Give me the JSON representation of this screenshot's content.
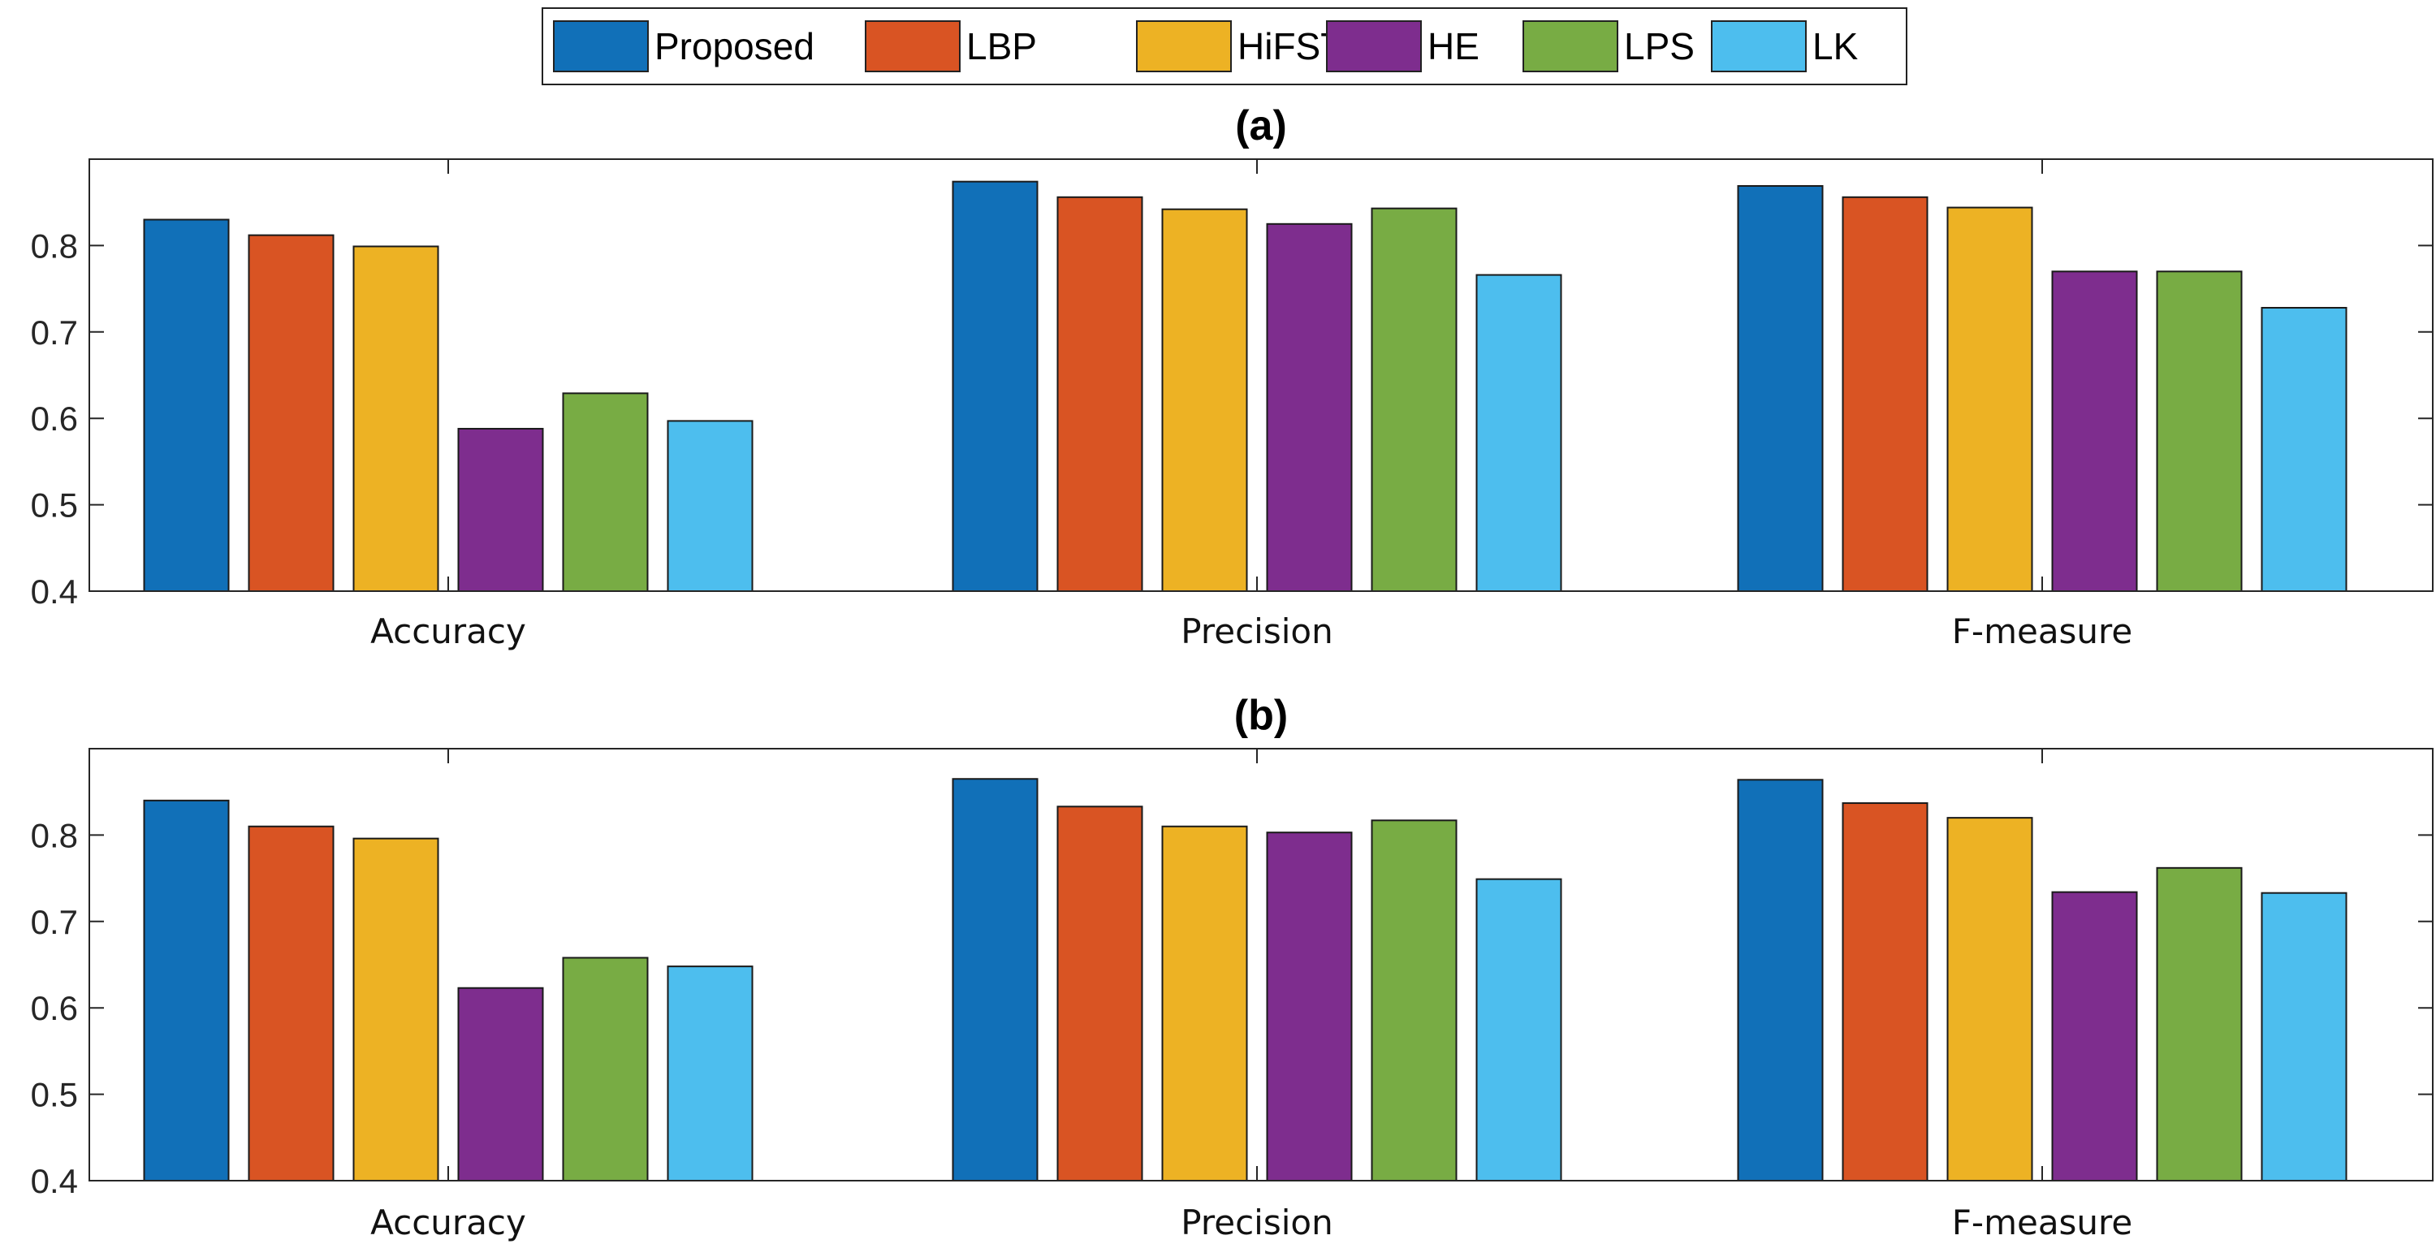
{
  "chart_data": [
    {
      "type": "bar",
      "title": "(a)",
      "categories": [
        "Accuracy",
        "Precision",
        "F-measure"
      ],
      "series": [
        {
          "name": "Proposed",
          "color": "#1170B8",
          "values": [
            0.83,
            0.874,
            0.869
          ]
        },
        {
          "name": "LBP",
          "color": "#D95423",
          "values": [
            0.812,
            0.856,
            0.856
          ]
        },
        {
          "name": "HiFST",
          "color": "#EDB224",
          "values": [
            0.799,
            0.842,
            0.844
          ]
        },
        {
          "name": "HE",
          "color": "#7E2D8E",
          "values": [
            0.588,
            0.825,
            0.77
          ]
        },
        {
          "name": "LPS",
          "color": "#78AC44",
          "values": [
            0.629,
            0.843,
            0.77
          ]
        },
        {
          "name": "LK",
          "color": "#4DBEEE",
          "values": [
            0.597,
            0.766,
            0.728
          ]
        }
      ],
      "ylim": [
        0.4,
        0.9
      ],
      "yticks": [
        "0.4",
        "0.5",
        "0.6",
        "0.7",
        "0.8"
      ],
      "xlabel": "",
      "ylabel": ""
    },
    {
      "type": "bar",
      "title": "(b)",
      "categories": [
        "Accuracy",
        "Precision",
        "F-measure"
      ],
      "series": [
        {
          "name": "Proposed",
          "color": "#1170B8",
          "values": [
            0.84,
            0.865,
            0.864
          ]
        },
        {
          "name": "LBP",
          "color": "#D95423",
          "values": [
            0.81,
            0.833,
            0.837
          ]
        },
        {
          "name": "HiFST",
          "color": "#EDB224",
          "values": [
            0.796,
            0.81,
            0.82
          ]
        },
        {
          "name": "HE",
          "color": "#7E2D8E",
          "values": [
            0.623,
            0.803,
            0.734
          ]
        },
        {
          "name": "LPS",
          "color": "#78AC44",
          "values": [
            0.658,
            0.817,
            0.762
          ]
        },
        {
          "name": "LK",
          "color": "#4DBEEE",
          "values": [
            0.648,
            0.749,
            0.733
          ]
        }
      ],
      "ylim": [
        0.4,
        0.9
      ],
      "yticks": [
        "0.4",
        "0.5",
        "0.6",
        "0.7",
        "0.8"
      ],
      "xlabel": "",
      "ylabel": ""
    }
  ],
  "legend": {
    "placement": "top-center",
    "entries": [
      "Proposed",
      "LBP",
      "HiFST",
      "HE",
      "LPS",
      "LK"
    ]
  }
}
